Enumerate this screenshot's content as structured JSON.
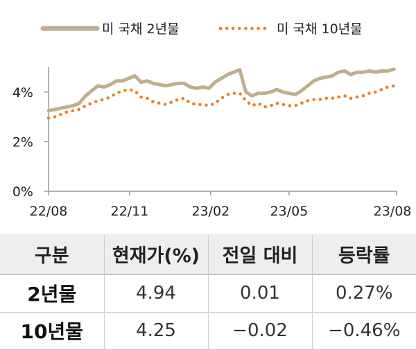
{
  "chart_data": {
    "type": "line",
    "x_ticks": [
      "22/08",
      "22/11",
      "23/02",
      "23/05",
      "23/08"
    ],
    "y_ticks": [
      "0%",
      "2%",
      "4%"
    ],
    "ylim": [
      0,
      5
    ],
    "legend_position": "top",
    "series": [
      {
        "name": "미 국채 2년물",
        "style": "solid",
        "color": "#bfae8f",
        "x": [
          "2022-08-01",
          "2022-08-08",
          "2022-08-15",
          "2022-08-22",
          "2022-08-29",
          "2022-09-05",
          "2022-09-12",
          "2022-09-19",
          "2022-09-26",
          "2022-10-03",
          "2022-10-10",
          "2022-10-17",
          "2022-10-24",
          "2022-10-31",
          "2022-11-07",
          "2022-11-14",
          "2022-11-21",
          "2022-11-28",
          "2022-12-05",
          "2022-12-12",
          "2022-12-19",
          "2022-12-26",
          "2023-01-02",
          "2023-01-09",
          "2023-01-16",
          "2023-01-23",
          "2023-01-30",
          "2023-02-06",
          "2023-02-13",
          "2023-02-20",
          "2023-02-27",
          "2023-03-06",
          "2023-03-13",
          "2023-03-20",
          "2023-03-27",
          "2023-04-03",
          "2023-04-10",
          "2023-04-17",
          "2023-04-24",
          "2023-05-01",
          "2023-05-08",
          "2023-05-15",
          "2023-05-22",
          "2023-05-29",
          "2023-06-05",
          "2023-06-12",
          "2023-06-19",
          "2023-06-26",
          "2023-07-03",
          "2023-07-10",
          "2023-07-17",
          "2023-07-24",
          "2023-07-31",
          "2023-08-07",
          "2023-08-14",
          "2023-08-21",
          "2023-08-28"
        ],
        "values": [
          3.25,
          3.3,
          3.35,
          3.4,
          3.45,
          3.55,
          3.85,
          4.05,
          4.25,
          4.2,
          4.3,
          4.45,
          4.45,
          4.55,
          4.65,
          4.4,
          4.45,
          4.35,
          4.3,
          4.25,
          4.3,
          4.35,
          4.35,
          4.2,
          4.15,
          4.2,
          4.15,
          4.4,
          4.55,
          4.7,
          4.8,
          4.9,
          4.0,
          3.85,
          3.95,
          3.95,
          4.0,
          4.1,
          4.0,
          3.95,
          3.9,
          4.05,
          4.25,
          4.45,
          4.55,
          4.6,
          4.65,
          4.8,
          4.85,
          4.7,
          4.8,
          4.8,
          4.85,
          4.8,
          4.85,
          4.85,
          4.92
        ]
      },
      {
        "name": "미 국채 10년물",
        "style": "dotted",
        "color": "#ee7d22",
        "x": [
          "2022-08-01",
          "2022-08-08",
          "2022-08-15",
          "2022-08-22",
          "2022-08-29",
          "2022-09-05",
          "2022-09-12",
          "2022-09-19",
          "2022-09-26",
          "2022-10-03",
          "2022-10-10",
          "2022-10-17",
          "2022-10-24",
          "2022-10-31",
          "2022-11-07",
          "2022-11-14",
          "2022-11-21",
          "2022-11-28",
          "2022-12-05",
          "2022-12-12",
          "2022-12-19",
          "2022-12-26",
          "2023-01-02",
          "2023-01-09",
          "2023-01-16",
          "2023-01-23",
          "2023-01-30",
          "2023-02-06",
          "2023-02-13",
          "2023-02-20",
          "2023-02-27",
          "2023-03-06",
          "2023-03-13",
          "2023-03-20",
          "2023-03-27",
          "2023-04-03",
          "2023-04-10",
          "2023-04-17",
          "2023-04-24",
          "2023-05-01",
          "2023-05-08",
          "2023-05-15",
          "2023-05-22",
          "2023-05-29",
          "2023-06-05",
          "2023-06-12",
          "2023-06-19",
          "2023-06-26",
          "2023-07-03",
          "2023-07-10",
          "2023-07-17",
          "2023-07-24",
          "2023-07-31",
          "2023-08-07",
          "2023-08-14",
          "2023-08-21",
          "2023-08-28"
        ],
        "values": [
          2.95,
          3.0,
          3.1,
          3.2,
          3.25,
          3.3,
          3.45,
          3.55,
          3.65,
          3.7,
          3.8,
          3.95,
          4.05,
          4.1,
          4.05,
          3.8,
          3.75,
          3.6,
          3.55,
          3.5,
          3.6,
          3.7,
          3.75,
          3.55,
          3.5,
          3.5,
          3.45,
          3.55,
          3.75,
          3.9,
          3.95,
          3.95,
          3.65,
          3.45,
          3.55,
          3.4,
          3.45,
          3.55,
          3.5,
          3.45,
          3.45,
          3.55,
          3.65,
          3.7,
          3.7,
          3.75,
          3.75,
          3.8,
          3.85,
          3.75,
          3.8,
          3.85,
          3.95,
          4.0,
          4.1,
          4.2,
          4.25
        ]
      }
    ]
  },
  "table": {
    "headers": [
      "구분",
      "현재가(%)",
      "전일 대비",
      "등락률"
    ],
    "rows": [
      [
        "2년물",
        "4.94",
        "0.01",
        "0.27%"
      ],
      [
        "10년물",
        "4.25",
        "−0.02",
        "−0.46%"
      ]
    ]
  }
}
